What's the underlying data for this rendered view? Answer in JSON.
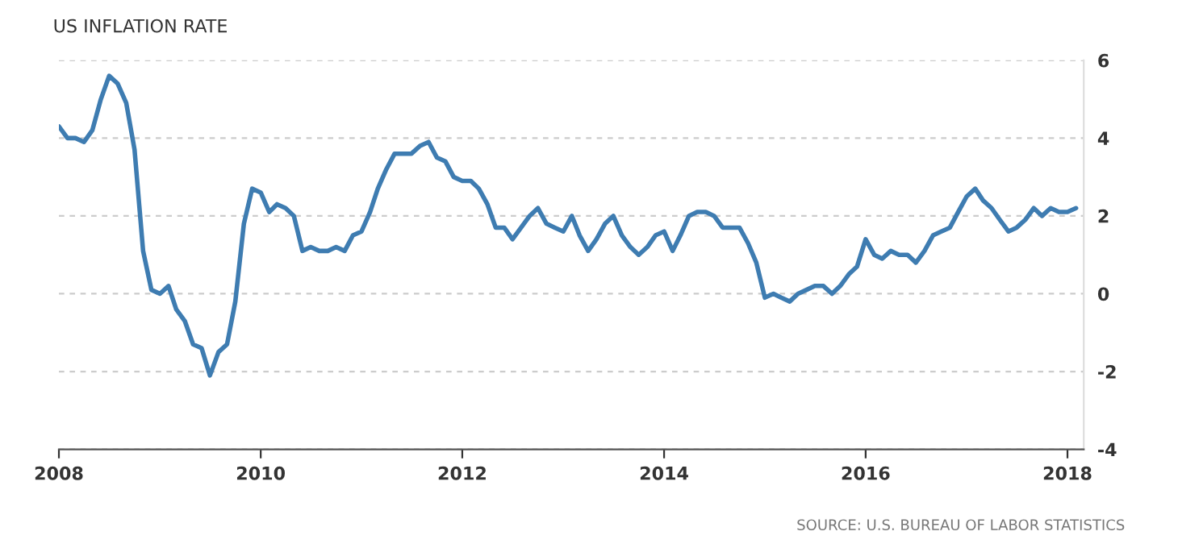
{
  "chart_data": {
    "type": "line",
    "title": "US INFLATION RATE",
    "x": [
      "2008-01",
      "2008-02",
      "2008-03",
      "2008-04",
      "2008-05",
      "2008-06",
      "2008-07",
      "2008-08",
      "2008-09",
      "2008-10",
      "2008-11",
      "2008-12",
      "2009-01",
      "2009-02",
      "2009-03",
      "2009-04",
      "2009-05",
      "2009-06",
      "2009-07",
      "2009-08",
      "2009-09",
      "2009-10",
      "2009-11",
      "2009-12",
      "2010-01",
      "2010-02",
      "2010-03",
      "2010-04",
      "2010-05",
      "2010-06",
      "2010-07",
      "2010-08",
      "2010-09",
      "2010-10",
      "2010-11",
      "2010-12",
      "2011-01",
      "2011-02",
      "2011-03",
      "2011-04",
      "2011-05",
      "2011-06",
      "2011-07",
      "2011-08",
      "2011-09",
      "2011-10",
      "2011-11",
      "2011-12",
      "2012-01",
      "2012-02",
      "2012-03",
      "2012-04",
      "2012-05",
      "2012-06",
      "2012-07",
      "2012-08",
      "2012-09",
      "2012-10",
      "2012-11",
      "2012-12",
      "2013-01",
      "2013-02",
      "2013-03",
      "2013-04",
      "2013-05",
      "2013-06",
      "2013-07",
      "2013-08",
      "2013-09",
      "2013-10",
      "2013-11",
      "2013-12",
      "2014-01",
      "2014-02",
      "2014-03",
      "2014-04",
      "2014-05",
      "2014-06",
      "2014-07",
      "2014-08",
      "2014-09",
      "2014-10",
      "2014-11",
      "2014-12",
      "2015-01",
      "2015-02",
      "2015-03",
      "2015-04",
      "2015-05",
      "2015-06",
      "2015-07",
      "2015-08",
      "2015-09",
      "2015-10",
      "2015-11",
      "2015-12",
      "2016-01",
      "2016-02",
      "2016-03",
      "2016-04",
      "2016-05",
      "2016-06",
      "2016-07",
      "2016-08",
      "2016-09",
      "2016-10",
      "2016-11",
      "2016-12",
      "2017-01",
      "2017-02",
      "2017-03",
      "2017-04",
      "2017-05",
      "2017-06",
      "2017-07",
      "2017-08",
      "2017-09",
      "2017-10",
      "2017-11",
      "2017-12",
      "2018-01",
      "2018-02"
    ],
    "series": [
      {
        "color": "#3e7cb1",
        "values": [
          4.3,
          4.0,
          4.0,
          3.9,
          4.2,
          5.0,
          5.6,
          5.4,
          4.9,
          3.7,
          1.1,
          0.1,
          0.0,
          0.2,
          -0.4,
          -0.7,
          -1.3,
          -1.4,
          -2.1,
          -1.5,
          -1.3,
          -0.2,
          1.8,
          2.7,
          2.6,
          2.1,
          2.3,
          2.2,
          2.0,
          1.1,
          1.2,
          1.1,
          1.1,
          1.2,
          1.1,
          1.5,
          1.6,
          2.1,
          2.7,
          3.2,
          3.6,
          3.6,
          3.6,
          3.8,
          3.9,
          3.5,
          3.4,
          3.0,
          2.9,
          2.9,
          2.7,
          2.3,
          1.7,
          1.7,
          1.4,
          1.7,
          2.0,
          2.2,
          1.8,
          1.7,
          1.6,
          2.0,
          1.5,
          1.1,
          1.4,
          1.8,
          2.0,
          1.5,
          1.2,
          1.0,
          1.2,
          1.5,
          1.6,
          1.1,
          1.5,
          2.0,
          2.1,
          2.1,
          2.0,
          1.7,
          1.7,
          1.7,
          1.3,
          0.8,
          -0.1,
          0.0,
          -0.1,
          -0.2,
          0.0,
          0.1,
          0.2,
          0.2,
          0.0,
          0.2,
          0.5,
          0.7,
          1.4,
          1.0,
          0.9,
          1.1,
          1.0,
          1.0,
          0.8,
          1.1,
          1.5,
          1.6,
          1.7,
          2.1,
          2.5,
          2.7,
          2.4,
          2.2,
          1.9,
          1.6,
          1.7,
          1.9,
          2.2,
          2.0,
          2.2,
          2.1,
          2.1,
          2.2
        ]
      }
    ],
    "xlim": [
      "2008-01",
      "2018-03"
    ],
    "xticks": [
      {
        "value": "2008-01",
        "label": "2008"
      },
      {
        "value": "2010-01",
        "label": "2010"
      },
      {
        "value": "2012-01",
        "label": "2012"
      },
      {
        "value": "2014-01",
        "label": "2014"
      },
      {
        "value": "2016-01",
        "label": "2016"
      },
      {
        "value": "2018-01",
        "label": "2018"
      }
    ],
    "ylim": [
      -4,
      6
    ],
    "yticks": [
      -4,
      -2,
      0,
      2,
      4,
      6
    ],
    "grid": "y",
    "line_style": "solid",
    "annotations": [
      "SOURCE: U.S. BUREAU OF LABOR STATISTICS"
    ]
  }
}
